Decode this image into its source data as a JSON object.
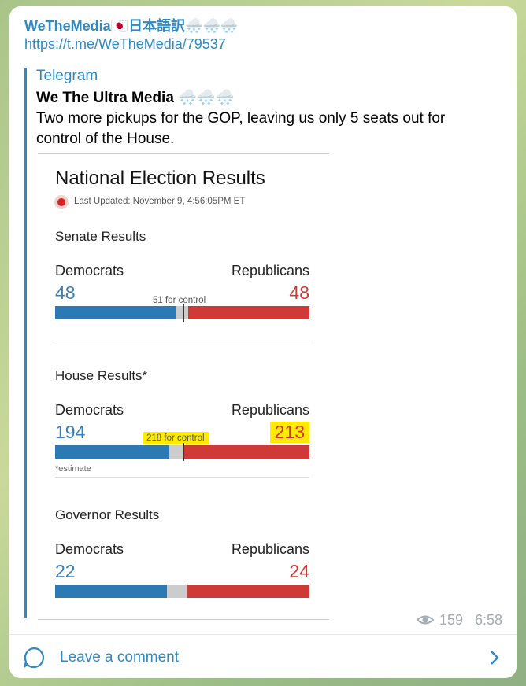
{
  "channel": {
    "name": "WeTheMedia🇯🇵日本語訳🌨️🌨️🌨️",
    "link": "https://t.me/WeTheMedia/79537"
  },
  "forward": {
    "source": "Telegram",
    "author": "We The Ultra Media 🌨️🌨️🌨️",
    "text": "Two more pickups for the GOP, leaving us only 5 seats out for control of the House."
  },
  "image": {
    "title": "National Election Results",
    "updated": "Last Updated: November 9, 4:56:05PM ET",
    "sections": [
      {
        "title": "Senate Results",
        "left_label": "Democrats",
        "right_label": "Republicans",
        "left_value": 48,
        "right_value": 48,
        "control": "51 for control"
      },
      {
        "title": "House Results*",
        "left_label": "Democrats",
        "right_label": "Republicans",
        "left_value": 194,
        "right_value": 213,
        "control": "218 for control",
        "note": "*estimate"
      },
      {
        "title": "Governor Results",
        "left_label": "Democrats",
        "right_label": "Republicans",
        "left_value": 22,
        "right_value": 24
      }
    ]
  },
  "footer": {
    "views": 159,
    "time": "6:58"
  },
  "comment": "Leave a comment"
}
